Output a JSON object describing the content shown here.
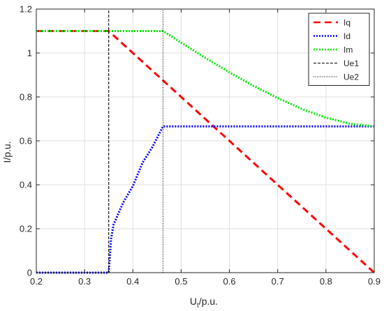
{
  "chart_data": {
    "type": "line",
    "xlabel_main": "U",
    "xlabel_sub": "t",
    "xlabel_unit": "/p.u.",
    "ylabel": "I/p.u.",
    "xlim": [
      0.2,
      0.9
    ],
    "ylim": [
      0,
      1.2
    ],
    "xticks": [
      0.2,
      0.3,
      0.4,
      0.5,
      0.6,
      0.7,
      0.8,
      0.9
    ],
    "yticks": [
      0,
      0.2,
      0.4,
      0.6,
      0.8,
      1,
      1.2
    ],
    "xtick_labels": [
      "0.2",
      "0.3",
      "0.4",
      "0.5",
      "0.6",
      "0.7",
      "0.8",
      "0.9"
    ],
    "ytick_labels": [
      "0",
      "0.2",
      "0.4",
      "0.6",
      "0.8",
      "1",
      "1.2"
    ],
    "grid": true,
    "legend_position": "top-right",
    "series": [
      {
        "name": "Iq",
        "color": "#ff0000",
        "style": "dashed",
        "x": [
          0.2,
          0.35,
          0.4625,
          0.9
        ],
        "y": [
          1.1,
          1.1,
          0.875,
          0.0
        ]
      },
      {
        "name": "Id",
        "color": "#0000ff",
        "style": "dotted",
        "x": [
          0.2,
          0.35,
          0.355,
          0.36,
          0.38,
          0.4,
          0.42,
          0.44,
          0.4625,
          0.9
        ],
        "y": [
          0.0,
          0.0,
          0.156,
          0.219,
          0.319,
          0.394,
          0.5,
          0.57,
          0.666,
          0.666
        ]
      },
      {
        "name": "Im",
        "color": "#00e600",
        "style": "dashdot",
        "x": [
          0.2,
          0.4625,
          0.5,
          0.55,
          0.6,
          0.65,
          0.7,
          0.75,
          0.8,
          0.85,
          0.9
        ],
        "y": [
          1.1,
          1.1,
          1.047,
          0.978,
          0.912,
          0.85,
          0.795,
          0.745,
          0.706,
          0.678,
          0.666
        ]
      },
      {
        "name": "Ue1",
        "color": "#000000",
        "style": "dashed-thin",
        "x": [
          0.35,
          0.35
        ],
        "y": [
          0,
          1.2
        ]
      },
      {
        "name": "Ue2",
        "color": "#000000",
        "style": "dotted-thin",
        "x": [
          0.4625,
          0.4625
        ],
        "y": [
          0,
          1.2
        ]
      }
    ]
  }
}
